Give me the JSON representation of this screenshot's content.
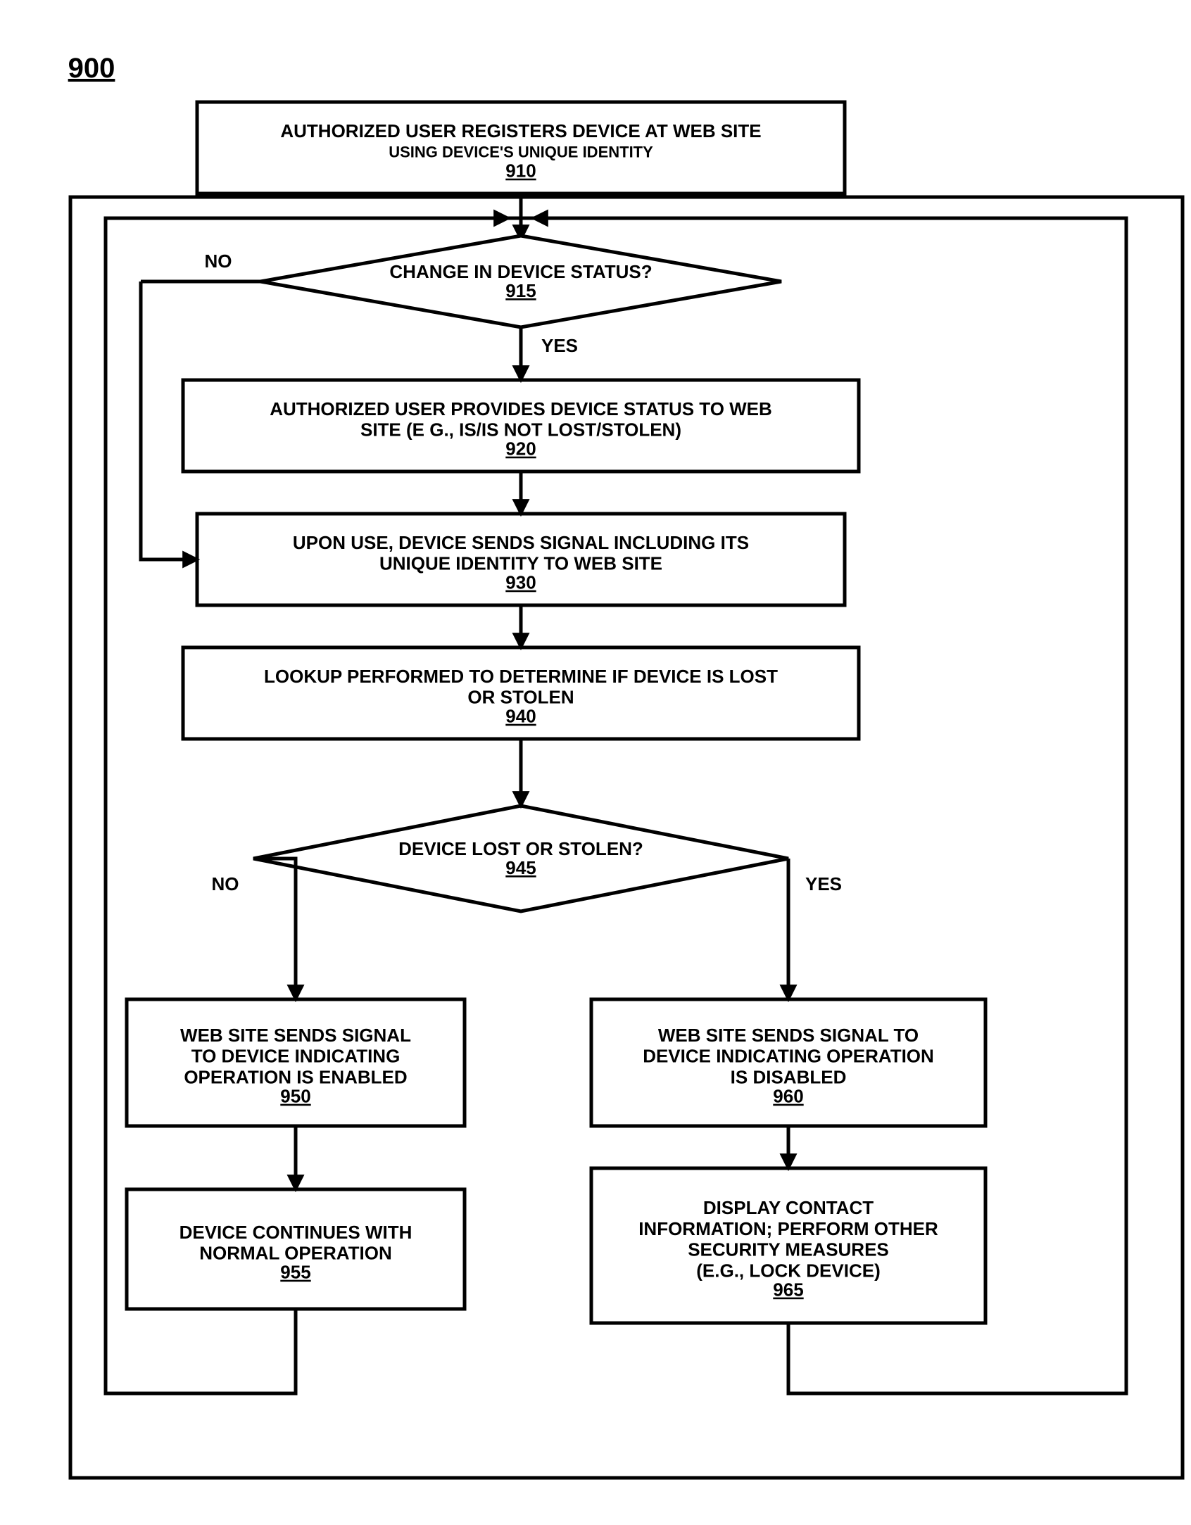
{
  "figure_label": "900",
  "stroke": "#000000",
  "stroke_width": 5,
  "font_family": "Arial, Helvetica, sans-serif",
  "font_size_main": 26,
  "font_size_sub": 22,
  "font_size_ref": 26,
  "font_size_edge": 26,
  "nodes": {
    "n910": {
      "ref": "910",
      "line1": "AUTHORIZED USER REGISTERS DEVICE AT WEB SITE",
      "line2": "USING DEVICE'S UNIQUE IDENTITY"
    },
    "n915": {
      "ref": "915",
      "line1": "CHANGE IN DEVICE STATUS?"
    },
    "n920": {
      "ref": "920",
      "line1": "AUTHORIZED USER PROVIDES DEVICE STATUS TO WEB",
      "line2": "SITE (E G., IS/IS NOT LOST/STOLEN)"
    },
    "n930": {
      "ref": "930",
      "line1": "UPON USE, DEVICE SENDS SIGNAL INCLUDING ITS",
      "line2": "UNIQUE IDENTITY TO WEB SITE"
    },
    "n940": {
      "ref": "940",
      "line1": "LOOKUP PERFORMED TO DETERMINE IF DEVICE IS LOST",
      "line2": "OR STOLEN"
    },
    "n945": {
      "ref": "945",
      "line1": "DEVICE LOST OR STOLEN?"
    },
    "n950": {
      "ref": "950",
      "line1": "WEB SITE SENDS SIGNAL",
      "line2": "TO DEVICE INDICATING",
      "line3": "OPERATION IS ENABLED"
    },
    "n955": {
      "ref": "955",
      "line1": "DEVICE CONTINUES WITH",
      "line2": "NORMAL OPERATION"
    },
    "n960": {
      "ref": "960",
      "line1": "WEB SITE SENDS SIGNAL TO",
      "line2": "DEVICE INDICATING OPERATION",
      "line3": "IS DISABLED"
    },
    "n965": {
      "ref": "965",
      "line1": "DISPLAY CONTACT",
      "line2": "INFORMATION; PERFORM OTHER",
      "line3": "SECURITY MEASURES",
      "line4": "(E.G., LOCK DEVICE)"
    }
  },
  "edge_labels": {
    "no915": "NO",
    "yes915": "YES",
    "no945": "NO",
    "yes945": "YES"
  }
}
